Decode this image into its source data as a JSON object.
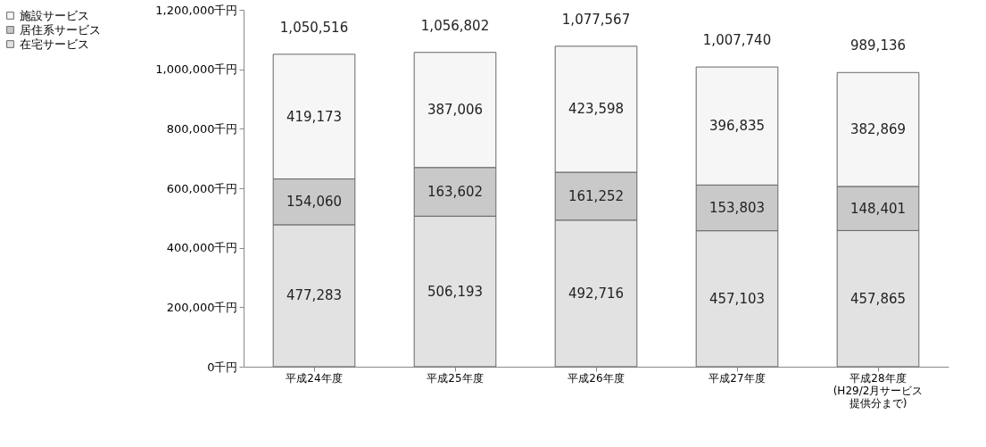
{
  "chart_data": {
    "type": "bar",
    "stacked": true,
    "legend": "left",
    "grid": false,
    "categories": [
      "平成24年度",
      "平成25年度",
      "平成26年度",
      "平成27年度",
      "平成28年度(H29/2月サービス提供分まで)"
    ],
    "series": [
      {
        "name": "在宅サービス",
        "color": "#e2e2e2",
        "values": [
          477283,
          506193,
          492716,
          457103,
          457865
        ],
        "value_labels": [
          "477,283",
          "506,193",
          "492,716",
          "457,103",
          "457,865"
        ]
      },
      {
        "name": "居住系サービス",
        "color": "#c9c9c9",
        "values": [
          154060,
          163602,
          161252,
          153803,
          148401
        ],
        "value_labels": [
          "154,060",
          "163,602",
          "161,252",
          "153,803",
          "148,401"
        ]
      },
      {
        "name": "施設サービス",
        "color": "#f6f6f6",
        "values": [
          419173,
          387006,
          423598,
          396835,
          382869
        ],
        "value_labels": [
          "419,173",
          "387,006",
          "423,598",
          "396,835",
          "382,869"
        ]
      }
    ],
    "totals": [
      "1,050,516",
      "1,056,802",
      "1,077,567",
      "1,007,740",
      "989,136"
    ],
    "ylim": [
      0,
      1200000
    ],
    "yticks": [
      {
        "value": 0,
        "label": "0千円"
      },
      {
        "value": 200000,
        "label": "200,000千円"
      },
      {
        "value": 400000,
        "label": "400,000千円"
      },
      {
        "value": 600000,
        "label": "600,000千円"
      },
      {
        "value": 800000,
        "label": "800,000千円"
      },
      {
        "value": 1000000,
        "label": "1,000,000千円"
      },
      {
        "value": 1200000,
        "label": "1,200,000千円"
      }
    ]
  }
}
